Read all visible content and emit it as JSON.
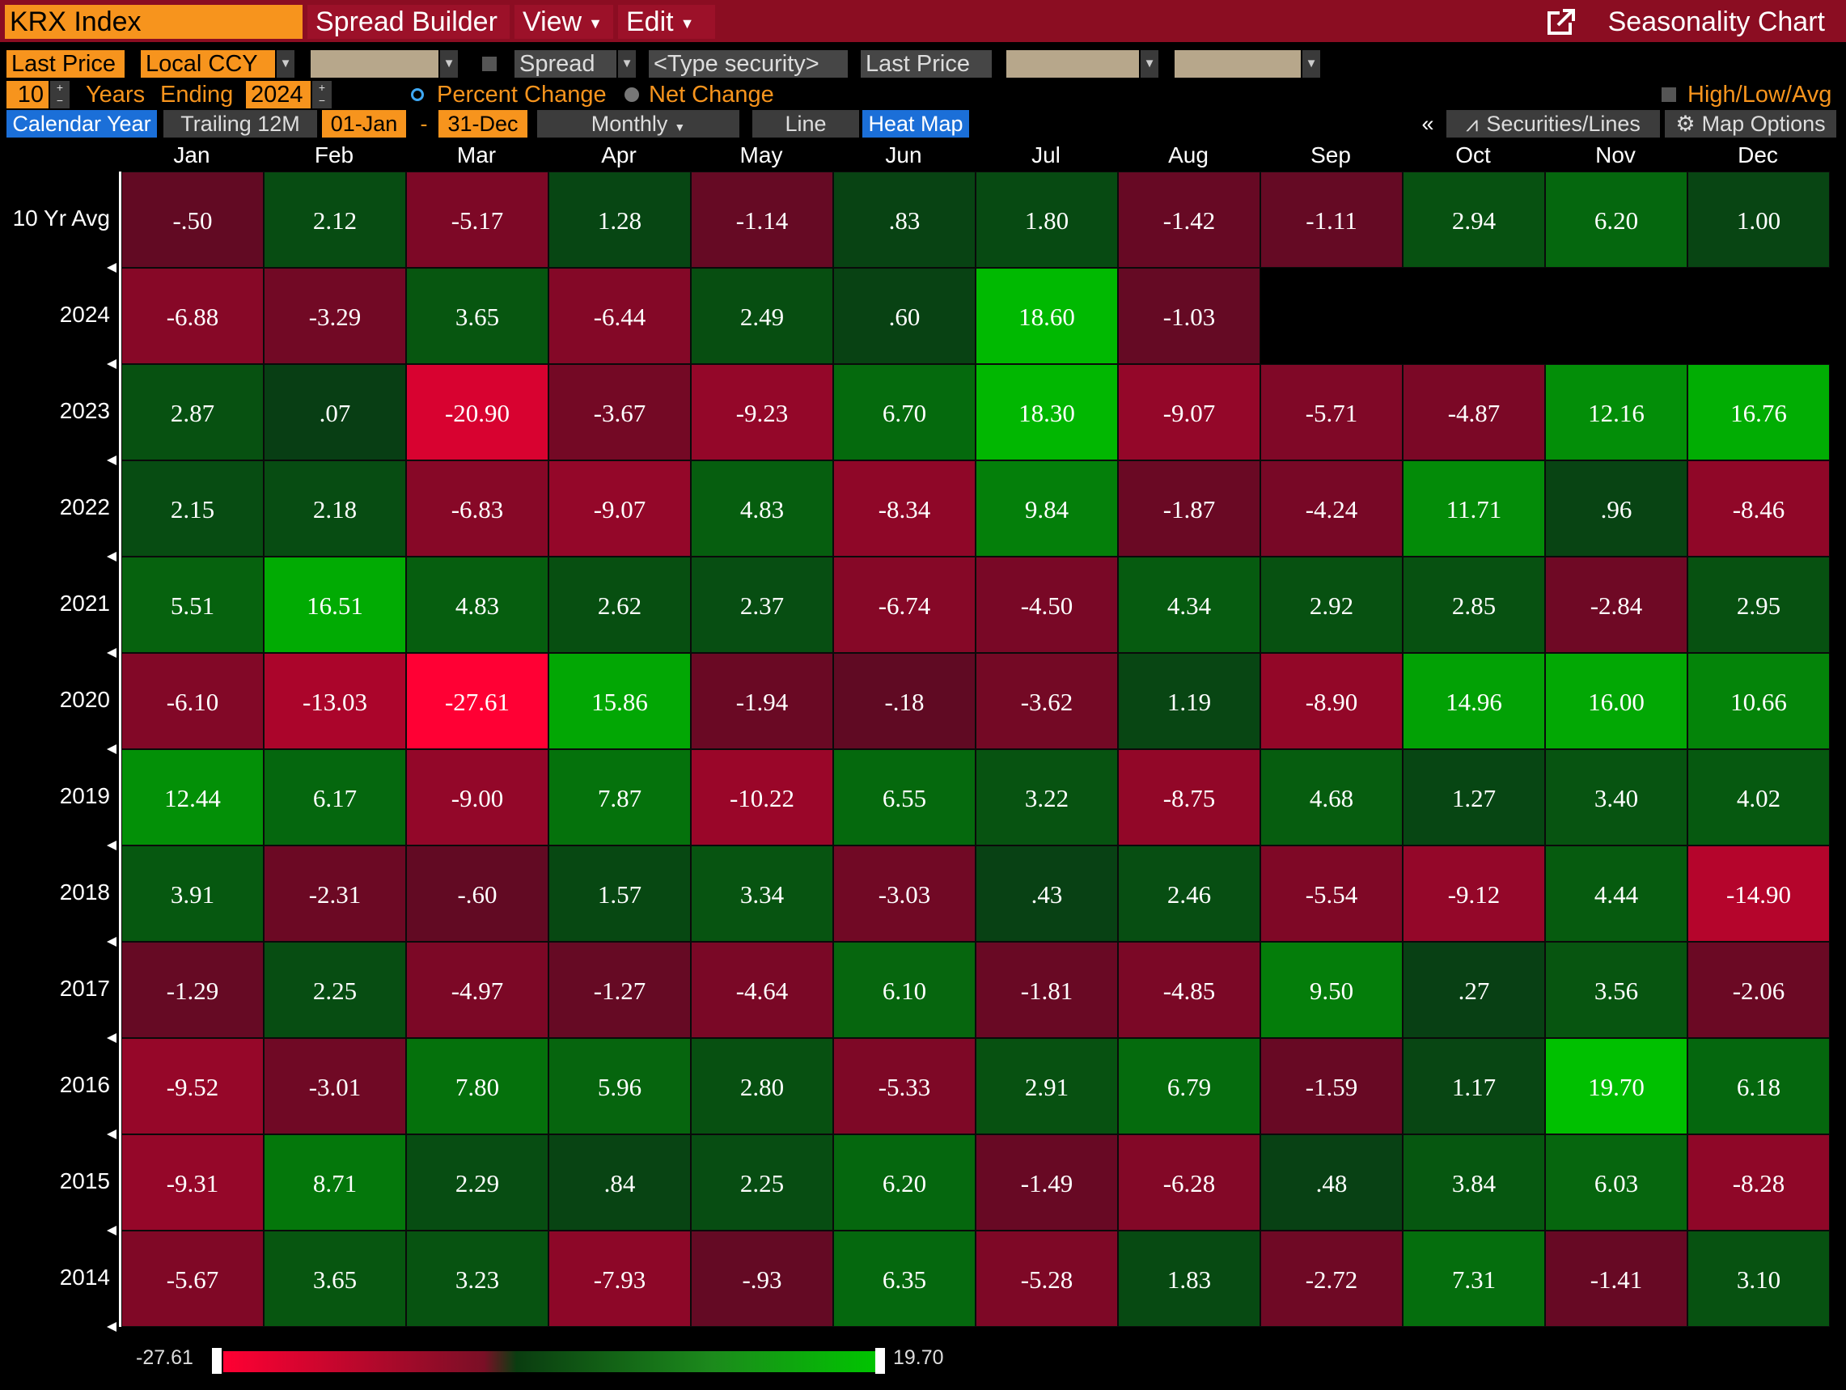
{
  "menu": {
    "ticker": "KRX Index",
    "spread_builder": "Spread Builder",
    "view": "View",
    "edit": "Edit",
    "title": "Seasonality Chart"
  },
  "controls": {
    "field1": "Last Price",
    "currency": "Local CCY",
    "spread_label": "Spread",
    "type_security_placeholder": "<Type security>",
    "field2": "Last Price",
    "years_value": "10",
    "years_label": "Years",
    "ending_label": "Ending",
    "ending_year": "2024",
    "percent_change": "Percent Change",
    "net_change": "Net Change",
    "high_low_avg": "High/Low/Avg",
    "selected_mode": "Percent Change"
  },
  "tabs": {
    "calendar_year": "Calendar Year",
    "trailing": "Trailing 12M",
    "start": "01-Jan",
    "dash": "-",
    "end": "31-Dec",
    "frequency": "Monthly",
    "line": "Line",
    "heat_map": "Heat Map",
    "collapse": "«",
    "securities_lines": "Securities/Lines",
    "map_options": "Map Options"
  },
  "colors": {
    "menu_bar": "#8b0d22",
    "accent_orange": "#f7941d",
    "active_tab": "#1b6fd8",
    "max_red": "#ff0033",
    "max_green": "#00c400"
  },
  "chart_data": {
    "type": "heatmap",
    "months": [
      "Jan",
      "Feb",
      "Mar",
      "Apr",
      "May",
      "Jun",
      "Jul",
      "Aug",
      "Sep",
      "Oct",
      "Nov",
      "Dec"
    ],
    "rows": [
      {
        "label": "10 Yr Avg",
        "values": [
          "-.50",
          "2.12",
          "-5.17",
          "1.28",
          "-1.14",
          ".83",
          "1.80",
          "-1.42",
          "-1.11",
          "2.94",
          "6.20",
          "1.00"
        ]
      },
      {
        "label": "2024",
        "values": [
          "-6.88",
          "-3.29",
          "3.65",
          "-6.44",
          "2.49",
          ".60",
          "18.60",
          "-1.03",
          null,
          null,
          null,
          null
        ]
      },
      {
        "label": "2023",
        "values": [
          "2.87",
          ".07",
          "-20.90",
          "-3.67",
          "-9.23",
          "6.70",
          "18.30",
          "-9.07",
          "-5.71",
          "-4.87",
          "12.16",
          "16.76"
        ]
      },
      {
        "label": "2022",
        "values": [
          "2.15",
          "2.18",
          "-6.83",
          "-9.07",
          "4.83",
          "-8.34",
          "9.84",
          "-1.87",
          "-4.24",
          "11.71",
          ".96",
          "-8.46"
        ]
      },
      {
        "label": "2021",
        "values": [
          "5.51",
          "16.51",
          "4.83",
          "2.62",
          "2.37",
          "-6.74",
          "-4.50",
          "4.34",
          "2.92",
          "2.85",
          "-2.84",
          "2.95"
        ]
      },
      {
        "label": "2020",
        "values": [
          "-6.10",
          "-13.03",
          "-27.61",
          "15.86",
          "-1.94",
          "-.18",
          "-3.62",
          "1.19",
          "-8.90",
          "14.96",
          "16.00",
          "10.66"
        ]
      },
      {
        "label": "2019",
        "values": [
          "12.44",
          "6.17",
          "-9.00",
          "7.87",
          "-10.22",
          "6.55",
          "3.22",
          "-8.75",
          "4.68",
          "1.27",
          "3.40",
          "4.02"
        ]
      },
      {
        "label": "2018",
        "values": [
          "3.91",
          "-2.31",
          "-.60",
          "1.57",
          "3.34",
          "-3.03",
          ".43",
          "2.46",
          "-5.54",
          "-9.12",
          "4.44",
          "-14.90"
        ]
      },
      {
        "label": "2017",
        "values": [
          "-1.29",
          "2.25",
          "-4.97",
          "-1.27",
          "-4.64",
          "6.10",
          "-1.81",
          "-4.85",
          "9.50",
          ".27",
          "3.56",
          "-2.06"
        ]
      },
      {
        "label": "2016",
        "values": [
          "-9.52",
          "-3.01",
          "7.80",
          "5.96",
          "2.80",
          "-5.33",
          "2.91",
          "6.79",
          "-1.59",
          "1.17",
          "19.70",
          "6.18"
        ]
      },
      {
        "label": "2015",
        "values": [
          "-9.31",
          "8.71",
          "2.29",
          ".84",
          "2.25",
          "6.20",
          "-1.49",
          "-6.28",
          ".48",
          "3.84",
          "6.03",
          "-8.28"
        ]
      },
      {
        "label": "2014",
        "values": [
          "-5.67",
          "3.65",
          "3.23",
          "-7.93",
          "-.93",
          "6.35",
          "-5.28",
          "1.83",
          "-2.72",
          "7.31",
          "-1.41",
          "3.10"
        ]
      }
    ],
    "legend": {
      "min": "-27.61",
      "max": "19.70"
    }
  }
}
